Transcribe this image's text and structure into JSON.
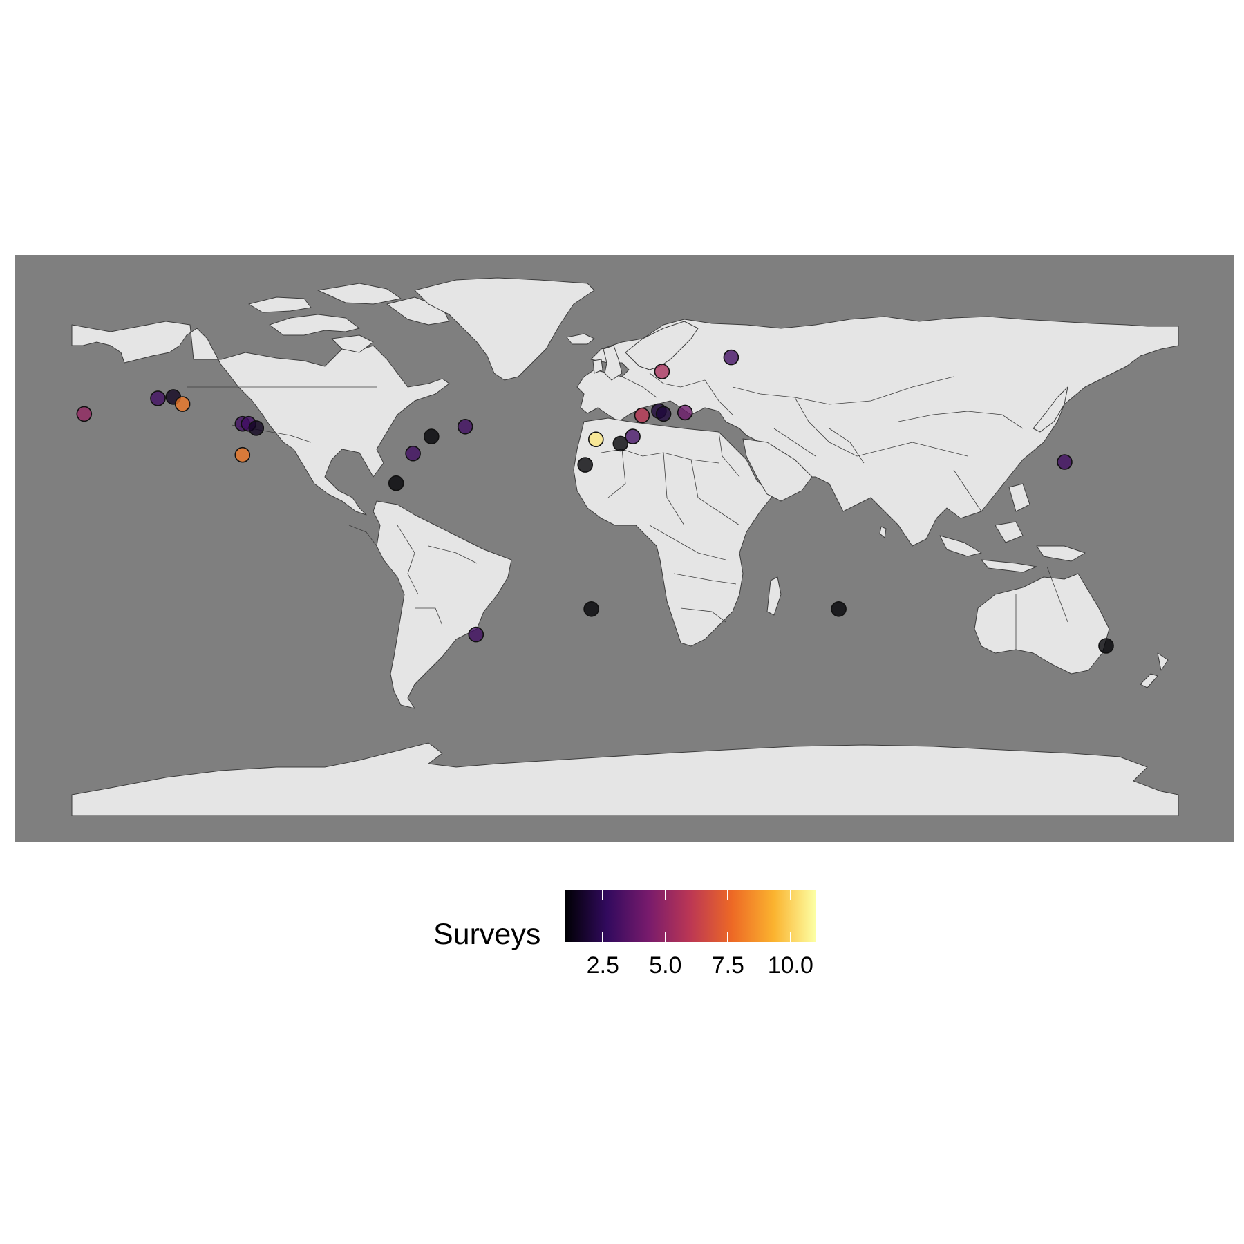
{
  "colors": {
    "background": "#ffffff",
    "ocean": "#7f7f7f",
    "land": "#e5e5e5",
    "border": "#3c3c3c",
    "point_stroke": "#111111"
  },
  "legend": {
    "title": "Surveys",
    "ticks": [
      "2.5",
      "5.0",
      "7.5",
      "10.0"
    ],
    "tick_values": [
      2.5,
      5.0,
      7.5,
      10.0
    ],
    "range": [
      1,
      11
    ],
    "palette": "inferno",
    "stops": [
      "#000004",
      "#320a5e",
      "#781b6c",
      "#bc3754",
      "#ed6925",
      "#fbb32f",
      "#fcffa4"
    ]
  },
  "chart_data": {
    "type": "scatter",
    "basemap": "world countries, equirectangular projection",
    "xlim": [
      -180,
      180
    ],
    "ylim": [
      -90,
      90
    ],
    "color_variable": "Surveys",
    "points": [
      {
        "lon": -176.0,
        "lat": 52.0,
        "surveys": 5
      },
      {
        "lon": -152.0,
        "lat": 57.5,
        "surveys": 3
      },
      {
        "lon": -147.0,
        "lat": 58.0,
        "surveys": 1.5
      },
      {
        "lon": -144.0,
        "lat": 55.5,
        "surveys": 8
      },
      {
        "lon": -124.5,
        "lat": 48.5,
        "surveys": 3
      },
      {
        "lon": -122.5,
        "lat": 48.5,
        "surveys": 3
      },
      {
        "lon": -120.0,
        "lat": 47.0,
        "surveys": 1.5
      },
      {
        "lon": -124.5,
        "lat": 37.5,
        "surveys": 8
      },
      {
        "lon": -63.0,
        "lat": 44.0,
        "surveys": 1
      },
      {
        "lon": -52.0,
        "lat": 47.5,
        "surveys": 3
      },
      {
        "lon": -69.0,
        "lat": 38.0,
        "surveys": 3
      },
      {
        "lon": -74.5,
        "lat": 27.5,
        "surveys": 1
      },
      {
        "lon": -48.5,
        "lat": -26.0,
        "surveys": 3
      },
      {
        "lon": -13.0,
        "lat": 34.0,
        "surveys": 1
      },
      {
        "lon": -9.5,
        "lat": 43.0,
        "surveys": 10.5
      },
      {
        "lon": -1.5,
        "lat": 41.5,
        "surveys": 1
      },
      {
        "lon": 2.5,
        "lat": 44.0,
        "surveys": 3
      },
      {
        "lon": 5.5,
        "lat": 51.5,
        "surveys": 6
      },
      {
        "lon": 11.0,
        "lat": 53.0,
        "surveys": 2
      },
      {
        "lon": 12.5,
        "lat": 52.0,
        "surveys": 2
      },
      {
        "lon": 19.5,
        "lat": 52.5,
        "surveys": 4
      },
      {
        "lon": 12.0,
        "lat": 67.0,
        "surveys": 5.5
      },
      {
        "lon": 34.5,
        "lat": 72.0,
        "surveys": 3
      },
      {
        "lon": -11.0,
        "lat": -17.0,
        "surveys": 1
      },
      {
        "lon": 69.5,
        "lat": -17.0,
        "surveys": 1
      },
      {
        "lon": 143.0,
        "lat": 35.0,
        "surveys": 3
      },
      {
        "lon": 156.5,
        "lat": -30.0,
        "surveys": 1
      }
    ]
  }
}
